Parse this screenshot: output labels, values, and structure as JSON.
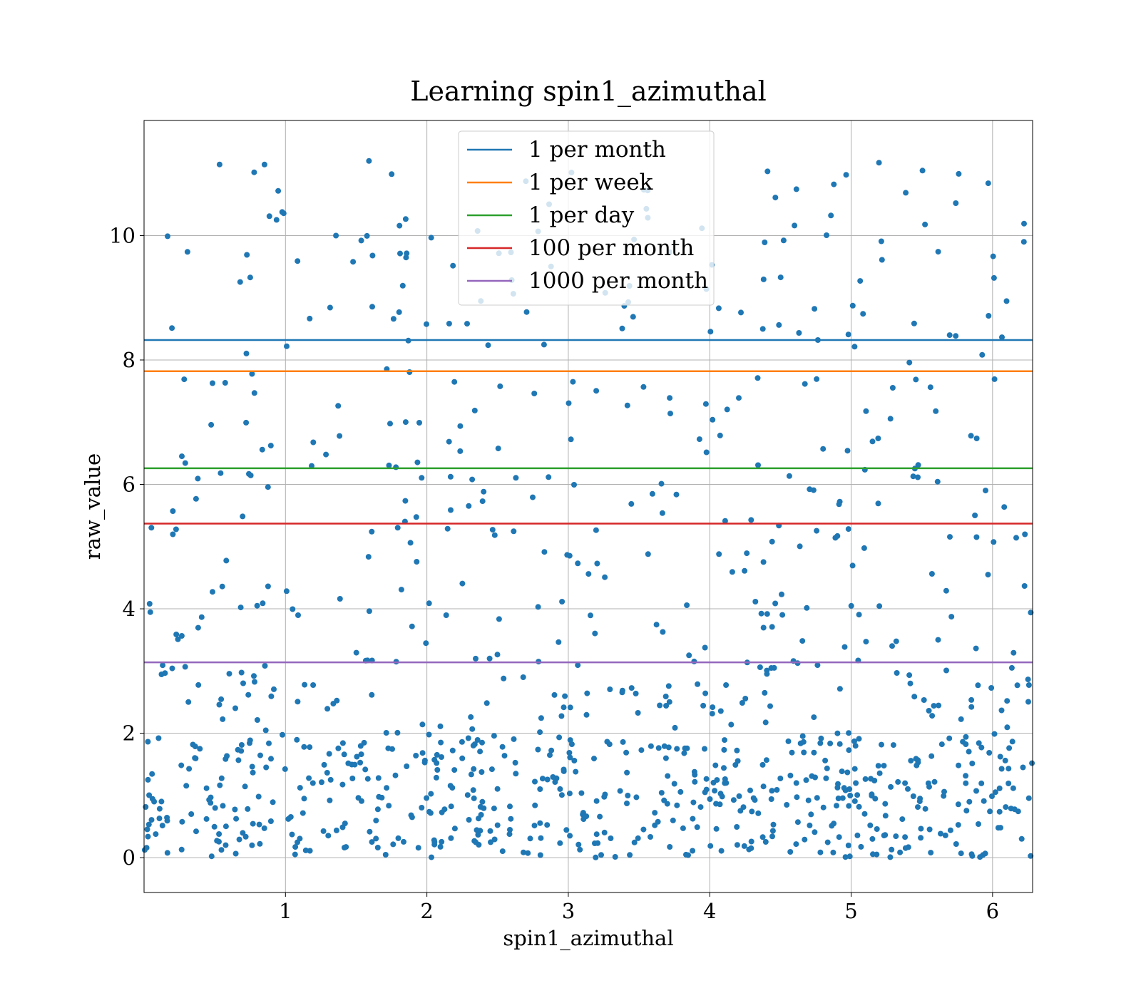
{
  "chart_data": {
    "type": "scatter",
    "title": "Learning spin1_azimuthal",
    "xlabel": "spin1_azimuthal",
    "ylabel": "raw_value",
    "xlim": [
      0,
      6.2832
    ],
    "ylim": [
      -0.56,
      11.85
    ],
    "x_ticks": [
      1,
      2,
      3,
      4,
      5,
      6
    ],
    "y_ticks": [
      0,
      2,
      4,
      6,
      8,
      10
    ],
    "grid": true,
    "legend_position": "top-center",
    "scatter_color": "#1f77b4",
    "point_count": 1000,
    "point_distribution": "x uniform on [0, 2π]; y dense near 0 (≈70% below 2), sparse up to ≈11.2",
    "series": [
      {
        "name": "1 per month",
        "type": "hline",
        "y": 8.32,
        "color": "#1f77b4"
      },
      {
        "name": "1 per week",
        "type": "hline",
        "y": 7.82,
        "color": "#ff7f0e"
      },
      {
        "name": "1 per day",
        "type": "hline",
        "y": 6.26,
        "color": "#2ca02c"
      },
      {
        "name": "100 per month",
        "type": "hline",
        "y": 5.37,
        "color": "#d62728"
      },
      {
        "name": "1000 per month",
        "type": "hline",
        "y": 3.14,
        "color": "#9467bd"
      }
    ]
  }
}
